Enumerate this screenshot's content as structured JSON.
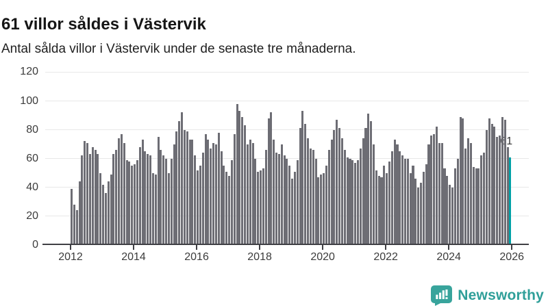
{
  "header": {
    "title": "61 villor såldes i Västervik",
    "subtitle": "Antal sålda villor i Västervik under de senaste tre månaderna."
  },
  "chart_data": {
    "type": "bar",
    "title": "61 villor såldes i Västervik",
    "subtitle": "Antal sålda villor i Västervik under de senaste tre månaderna.",
    "frequency": "monthly",
    "x_start": "2012-01",
    "x_end": "2025-12",
    "x_tick_labels": [
      "2012",
      "2014",
      "2016",
      "2018",
      "2020",
      "2022",
      "2024",
      "2026"
    ],
    "y_ticks": [
      0,
      20,
      40,
      60,
      80,
      100,
      120
    ],
    "ylim": [
      0,
      120
    ],
    "grid": true,
    "bar_color": "#6d6d74",
    "highlight": {
      "index": 167,
      "value": 61,
      "label": "61",
      "color": "#00a1a6"
    },
    "values": [
      39,
      28,
      24,
      44,
      62,
      72,
      71,
      63,
      68,
      66,
      63,
      50,
      42,
      36,
      44,
      49,
      63,
      66,
      74,
      77,
      71,
      59,
      58,
      55,
      56,
      59,
      68,
      73,
      65,
      63,
      62,
      50,
      49,
      75,
      66,
      62,
      60,
      50,
      60,
      70,
      79,
      86,
      92,
      80,
      79,
      73,
      73,
      62,
      52,
      55,
      64,
      77,
      73,
      67,
      71,
      70,
      78,
      65,
      55,
      51,
      48,
      59,
      77,
      98,
      93,
      89,
      83,
      70,
      73,
      71,
      60,
      51,
      52,
      53,
      66,
      88,
      92,
      73,
      64,
      63,
      70,
      62,
      60,
      55,
      46,
      51,
      59,
      81,
      93,
      84,
      74,
      67,
      66,
      60,
      47,
      49,
      50,
      55,
      66,
      73,
      80,
      87,
      81,
      74,
      66,
      61,
      60,
      59,
      57,
      59,
      67,
      74,
      81,
      91,
      86,
      70,
      52,
      48,
      47,
      55,
      50,
      58,
      65,
      73,
      70,
      65,
      62,
      60,
      60,
      50,
      55,
      46,
      40,
      43,
      51,
      56,
      70,
      76,
      77,
      82,
      71,
      71,
      53,
      48,
      42,
      40,
      53,
      60,
      89,
      88,
      67,
      74,
      71,
      54,
      53,
      53,
      62,
      64,
      80,
      88,
      84,
      82,
      75,
      76,
      89,
      87,
      68,
      61
    ]
  },
  "branding": {
    "logo_text": "Newsworthy",
    "logo_icon": "bar-chart-speech-bubble-icon",
    "logo_color": "#35a19b"
  }
}
